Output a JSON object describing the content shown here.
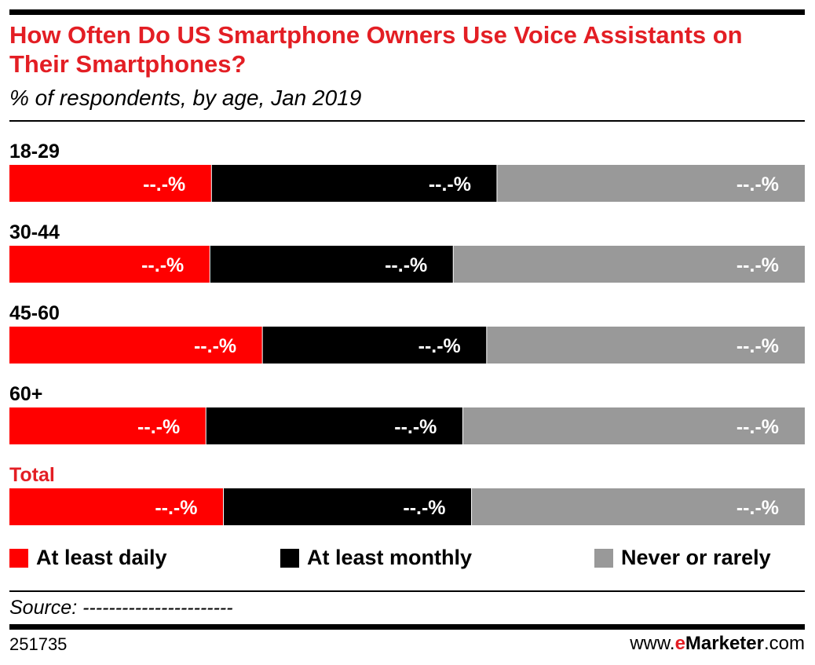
{
  "header": {
    "title": "How Often Do US Smartphone Owners Use Voice Assistants on Their Smartphones?",
    "subtitle": "% of respondents, by age, Jan 2019"
  },
  "chart_data": {
    "type": "bar",
    "orientation": "horizontal",
    "stacked": true,
    "categories": [
      "18-29",
      "30-44",
      "45-60",
      "60+",
      "Total"
    ],
    "highlight_category": "Total",
    "series": [
      {
        "name": "At least daily",
        "color": "#ff0000",
        "values": [
          25.4,
          25.2,
          31.8,
          24.7,
          26.9
        ],
        "labels": [
          "--.-%",
          "--.-%",
          "--.-%",
          "--.-%",
          "--.-%"
        ]
      },
      {
        "name": "At least monthly",
        "color": "#000000",
        "values": [
          35.9,
          30.6,
          28.2,
          32.3,
          31.2
        ],
        "labels": [
          "--.-%",
          "--.-%",
          "--.-%",
          "--.-%",
          "--.-%"
        ]
      },
      {
        "name": "Never or rarely",
        "color": "#999999",
        "values": [
          38.7,
          44.2,
          40.0,
          43.0,
          41.9
        ],
        "labels": [
          "--.-%",
          "--.-%",
          "--.-%",
          "--.-%",
          "--.-%"
        ]
      }
    ],
    "xlim": [
      0,
      100
    ],
    "grid": false,
    "legend": "bottom"
  },
  "footer": {
    "source": "Source: -----------------------",
    "chart_id": "251735",
    "brand_prefix": "www.",
    "brand_e": "e",
    "brand_name": "Marketer",
    "brand_suffix": ".com"
  }
}
